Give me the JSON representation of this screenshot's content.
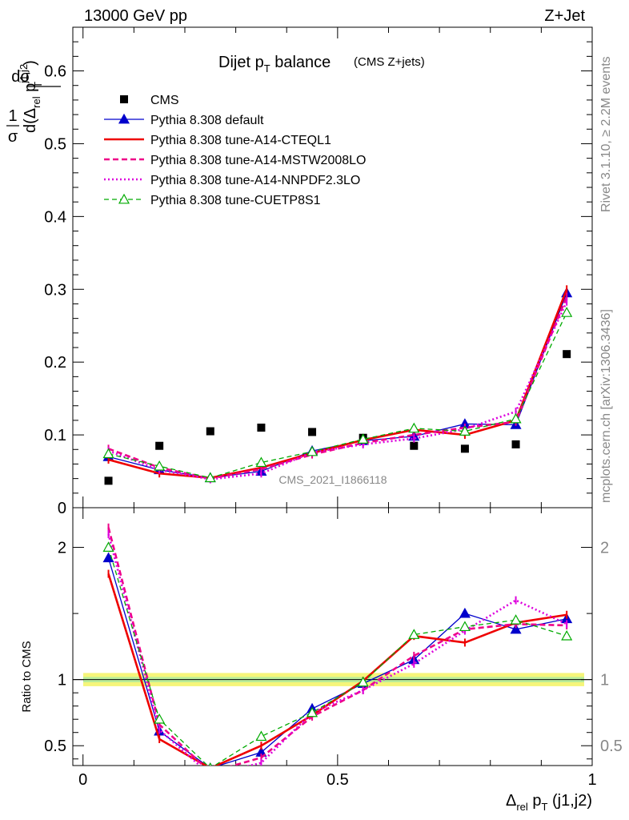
{
  "header": {
    "left": "13000 GeV pp",
    "right": "Z+Jet"
  },
  "side": {
    "rivet": "Rivet 3.1.10, ≥ 2.2M events",
    "mcplots": "mcplots.cern.ch [arXiv:1306.3436]"
  },
  "chart_title": {
    "main": "Dijet p",
    "main_sub": "T",
    "main_tail": " balance",
    "small": "(CMS Z+jets)"
  },
  "watermark": "CMS_2021_I1866118",
  "ylabel_top": {
    "frac_num": "1",
    "frac_den": "σ",
    "num": "dσ",
    "den_d": "d(Δ",
    "den_rel": "rel",
    "den_p": " p",
    "den_sup": "j1,j2",
    "den_T": "T",
    "den_close": ")"
  },
  "ylabel_bottom": "Ratio to CMS",
  "xlabel": {
    "delta": "Δ",
    "rel": "rel",
    "p": " p",
    "T": "T",
    "tail": " (j1,j2)"
  },
  "colors": {
    "cms": "#000000",
    "default": "#0000cc",
    "cteql1": "#ee0000",
    "mstw": "#ee0088",
    "nnpdf": "#dd00dd",
    "cuetp8s1": "#00aa00",
    "band_outer": "#f5f57a",
    "band_inner": "#b8ec9a"
  },
  "chart_data": [
    {
      "type": "scatter",
      "panel": "main",
      "ylim": [
        0,
        0.66
      ],
      "xlim": [
        -0.02,
        1.0
      ],
      "yticks": [
        0,
        0.1,
        0.2,
        0.3,
        0.4,
        0.5,
        0.6
      ],
      "ytick_labels": [
        "0",
        "0.1",
        "0.2",
        "0.3",
        "0.4",
        "0.5",
        "0.6"
      ],
      "x": [
        0.05,
        0.15,
        0.25,
        0.35,
        0.45,
        0.55,
        0.65,
        0.75,
        0.85,
        0.95
      ],
      "series": [
        {
          "name": "CMS",
          "style": "cms",
          "values": [
            0.037,
            0.085,
            0.105,
            0.11,
            0.104,
            0.096,
            0.085,
            0.081,
            0.087,
            0.211
          ]
        },
        {
          "name": "Pythia 8.308 default",
          "style": "default",
          "values": [
            0.07,
            0.052,
            0.041,
            0.05,
            0.078,
            0.092,
            0.098,
            0.115,
            0.114,
            0.295
          ]
        },
        {
          "name": "Pythia 8.308 tune-A14-CTEQL1",
          "style": "cteql1",
          "values": [
            0.066,
            0.047,
            0.041,
            0.055,
            0.075,
            0.093,
            0.107,
            0.1,
            0.12,
            0.3
          ]
        },
        {
          "name": "Pythia 8.308 tune-A14-MSTW2008LO",
          "style": "mstw",
          "values": [
            0.081,
            0.055,
            0.04,
            0.053,
            0.073,
            0.089,
            0.1,
            0.11,
            0.118,
            0.29
          ]
        },
        {
          "name": "Pythia 8.308 tune-A14-NNPDF2.3LO",
          "style": "nnpdf",
          "values": [
            0.078,
            0.052,
            0.039,
            0.047,
            0.076,
            0.087,
            0.095,
            0.108,
            0.132,
            0.283
          ]
        },
        {
          "name": "Pythia 8.308 tune-CUETP8S1",
          "style": "cuetp8s1",
          "values": [
            0.074,
            0.057,
            0.041,
            0.062,
            0.077,
            0.094,
            0.109,
            0.105,
            0.122,
            0.268
          ]
        }
      ]
    },
    {
      "type": "line",
      "panel": "ratio",
      "ylim": [
        0.35,
        2.3
      ],
      "xlim": [
        -0.02,
        1.0
      ],
      "yticks": [
        0.5,
        1,
        2
      ],
      "ytick_labels": [
        "0.5",
        "1",
        "2"
      ],
      "xticks": [
        0,
        0.5,
        1
      ],
      "xtick_labels": [
        "0",
        "0.5",
        "1"
      ],
      "x": [
        0.05,
        0.15,
        0.25,
        0.35,
        0.45,
        0.55,
        0.65,
        0.75,
        0.85,
        0.95
      ],
      "series": [
        {
          "name": "Pythia 8.308 default",
          "style": "default",
          "values": [
            1.92,
            0.61,
            0.33,
            0.45,
            0.78,
            0.97,
            1.15,
            1.5,
            1.38,
            1.46
          ]
        },
        {
          "name": "Pythia 8.308 tune-A14-CTEQL1",
          "style": "cteql1",
          "values": [
            1.8,
            0.55,
            0.33,
            0.5,
            0.73,
            0.99,
            1.33,
            1.28,
            1.43,
            1.49
          ]
        },
        {
          "name": "Pythia 8.308 tune-A14-MSTW2008LO",
          "style": "mstw",
          "values": [
            2.15,
            0.66,
            0.3,
            0.41,
            0.72,
            0.92,
            1.18,
            1.38,
            1.42,
            1.41
          ]
        },
        {
          "name": "Pythia 8.308 tune-A14-NNPDF2.3LO",
          "style": "nnpdf",
          "values": [
            2.1,
            0.62,
            0.28,
            0.37,
            0.75,
            0.92,
            1.12,
            1.37,
            1.6,
            1.42
          ]
        },
        {
          "name": "Pythia 8.308 tune-CUETP8S1",
          "style": "cuetp8s1",
          "values": [
            2.0,
            0.7,
            0.33,
            0.57,
            0.75,
            0.98,
            1.34,
            1.4,
            1.45,
            1.33
          ]
        }
      ]
    }
  ]
}
